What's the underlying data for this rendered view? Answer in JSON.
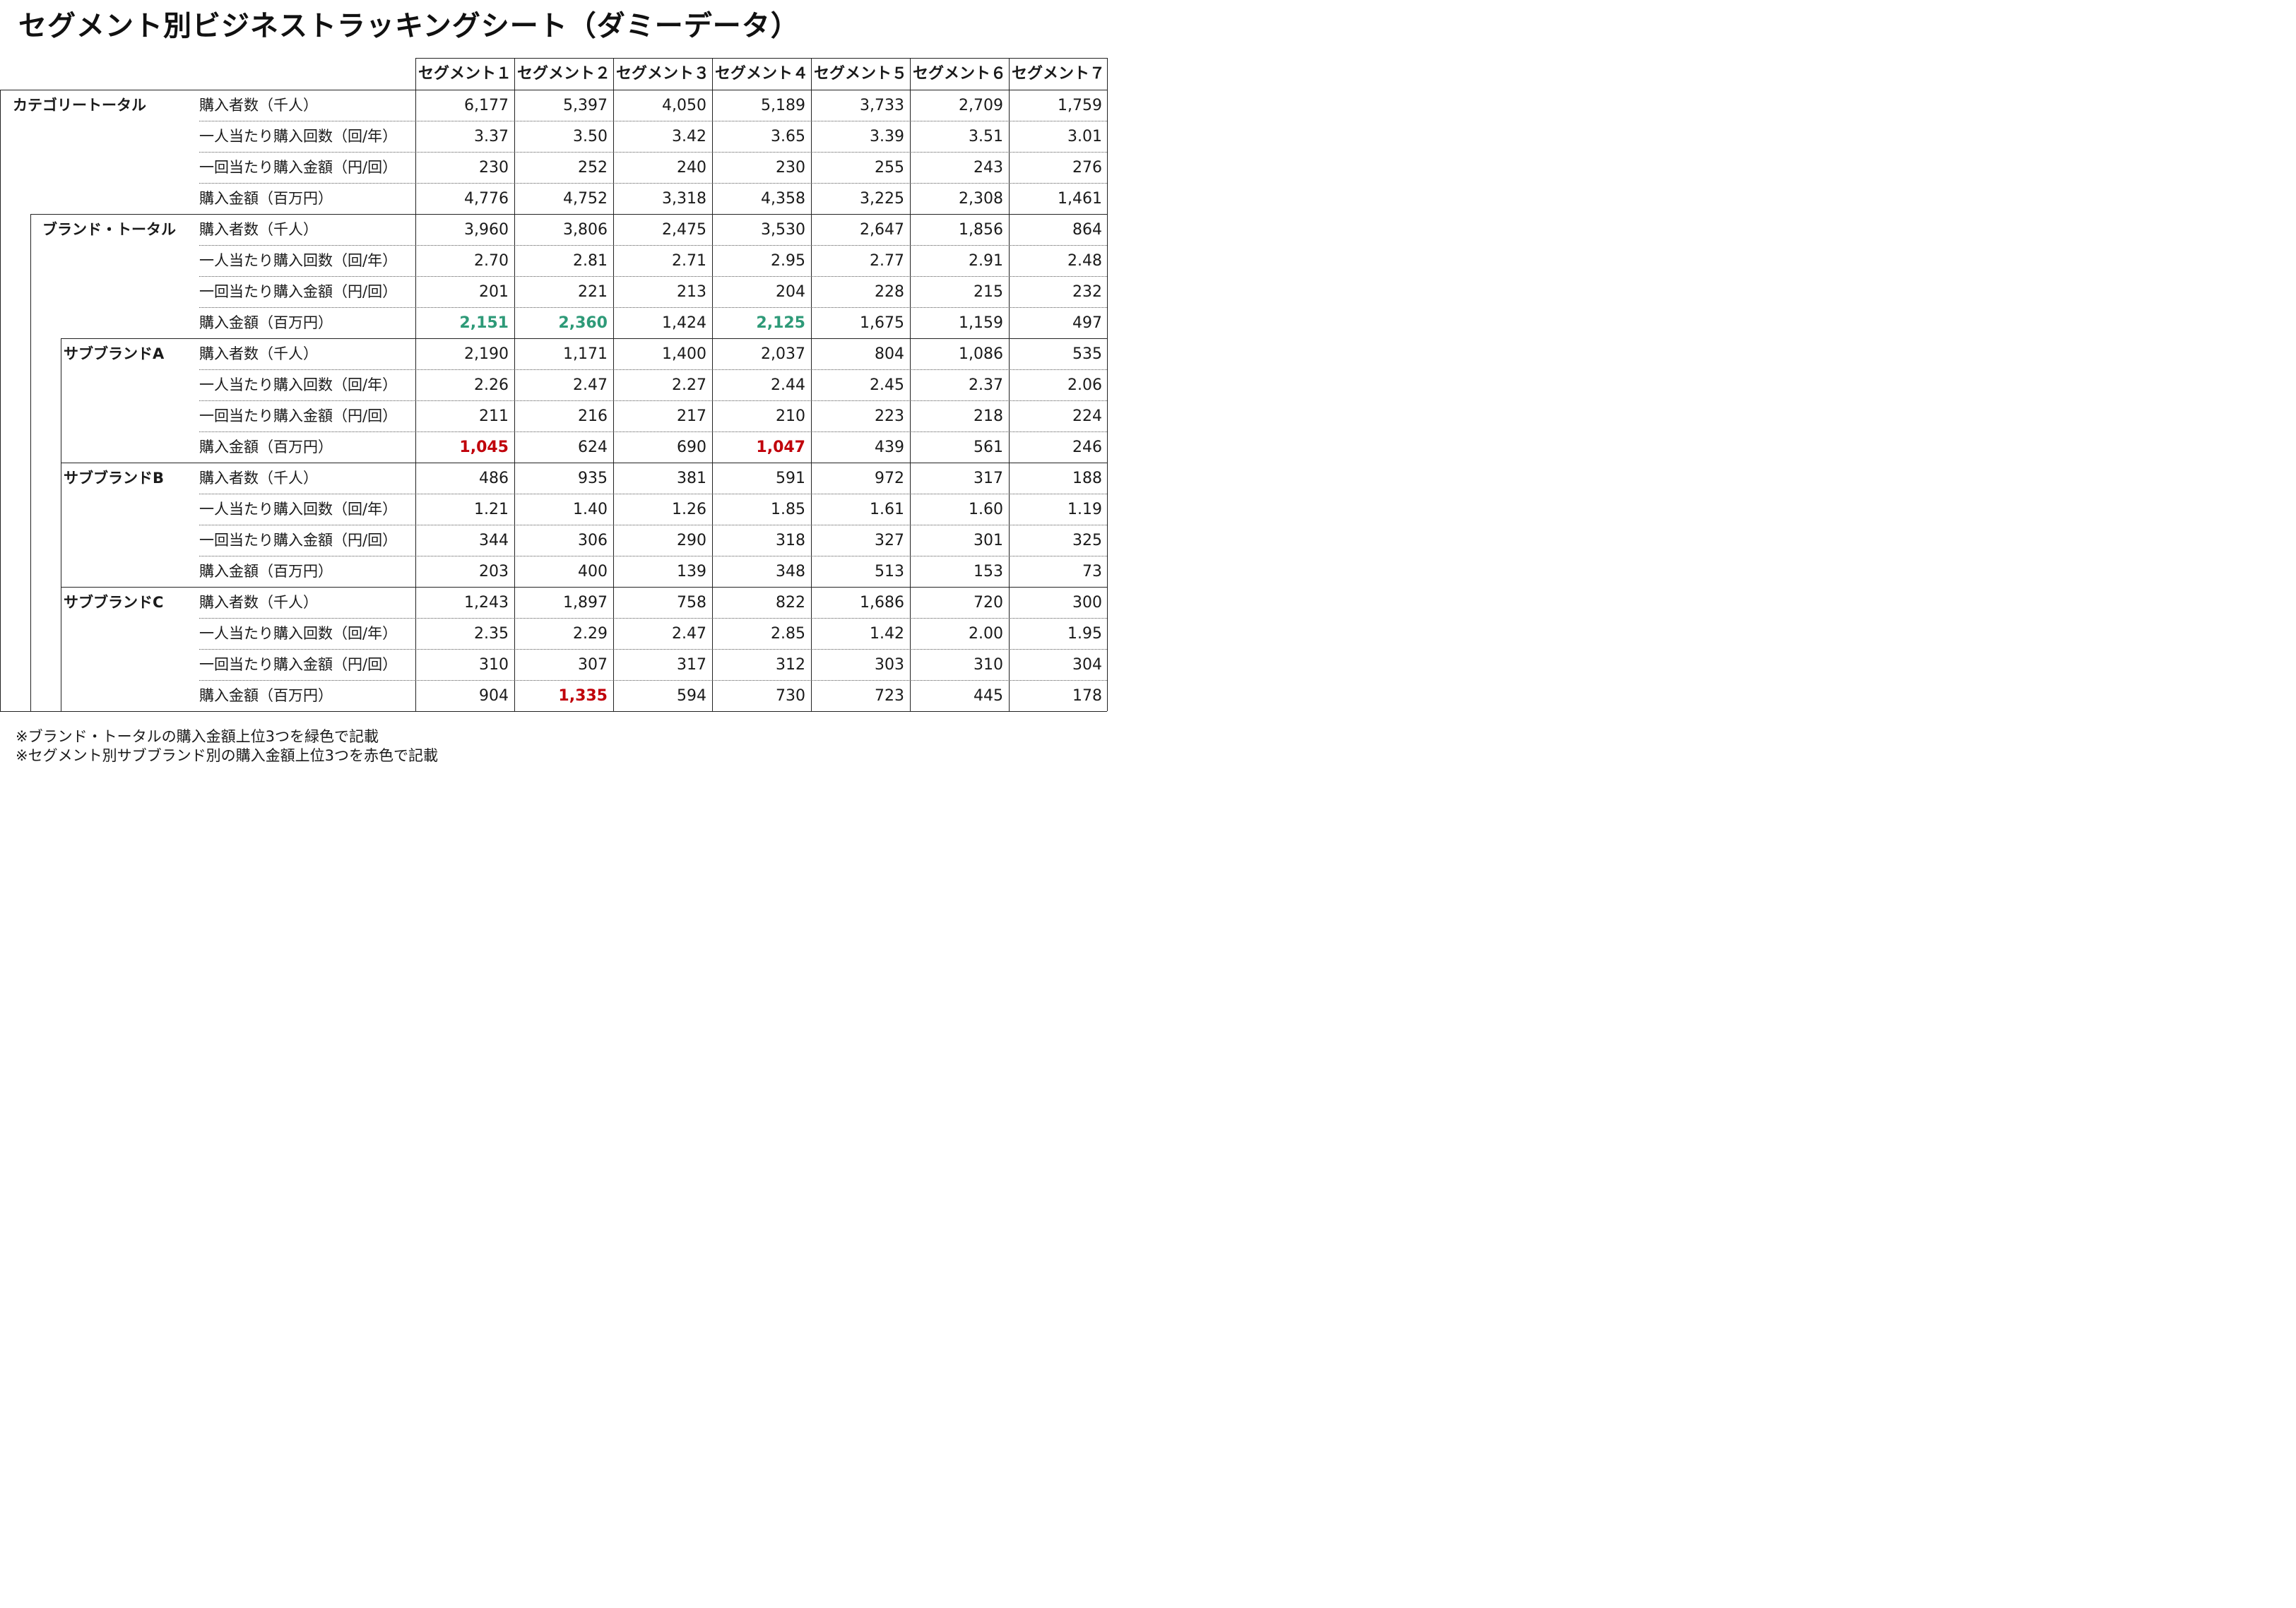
{
  "title": "セグメント別ビジネストラッキングシート（ダミーデータ）",
  "segments": [
    "セグメント１",
    "セグメント２",
    "セグメント３",
    "セグメント４",
    "セグメント５",
    "セグメント６",
    "セグメント７"
  ],
  "metrics": [
    "購入者数（千人）",
    "一人当たり購入回数（回/年）",
    "一回当たり購入金額（円/回）",
    "購入金額（百万円）"
  ],
  "groups": [
    {
      "label": "カテゴリートータル",
      "rows": [
        [
          "6,177",
          "5,397",
          "4,050",
          "5,189",
          "3,733",
          "2,709",
          "1,759"
        ],
        [
          "3.37",
          "3.50",
          "3.42",
          "3.65",
          "3.39",
          "3.51",
          "3.01"
        ],
        [
          "230",
          "252",
          "240",
          "230",
          "255",
          "243",
          "276"
        ],
        [
          "4,776",
          "4,752",
          "3,318",
          "4,358",
          "3,225",
          "2,308",
          "1,461"
        ]
      ],
      "highlight": []
    },
    {
      "label": "ブランド・トータル",
      "rows": [
        [
          "3,960",
          "3,806",
          "2,475",
          "3,530",
          "2,647",
          "1,856",
          "864"
        ],
        [
          "2.70",
          "2.81",
          "2.71",
          "2.95",
          "2.77",
          "2.91",
          "2.48"
        ],
        [
          "201",
          "221",
          "213",
          "204",
          "228",
          "215",
          "232"
        ],
        [
          "2,151",
          "2,360",
          "1,424",
          "2,125",
          "1,675",
          "1,159",
          "497"
        ]
      ],
      "highlight": [
        [
          3,
          0,
          "green"
        ],
        [
          3,
          1,
          "green"
        ],
        [
          3,
          3,
          "green"
        ]
      ]
    },
    {
      "label": "サブブランドA",
      "rows": [
        [
          "2,190",
          "1,171",
          "1,400",
          "2,037",
          "804",
          "1,086",
          "535"
        ],
        [
          "2.26",
          "2.47",
          "2.27",
          "2.44",
          "2.45",
          "2.37",
          "2.06"
        ],
        [
          "211",
          "216",
          "217",
          "210",
          "223",
          "218",
          "224"
        ],
        [
          "1,045",
          "624",
          "690",
          "1,047",
          "439",
          "561",
          "246"
        ]
      ],
      "highlight": [
        [
          3,
          0,
          "red"
        ],
        [
          3,
          3,
          "red"
        ]
      ]
    },
    {
      "label": "サブブランドB",
      "rows": [
        [
          "486",
          "935",
          "381",
          "591",
          "972",
          "317",
          "188"
        ],
        [
          "1.21",
          "1.40",
          "1.26",
          "1.85",
          "1.61",
          "1.60",
          "1.19"
        ],
        [
          "344",
          "306",
          "290",
          "318",
          "327",
          "301",
          "325"
        ],
        [
          "203",
          "400",
          "139",
          "348",
          "513",
          "153",
          "73"
        ]
      ],
      "highlight": []
    },
    {
      "label": "サブブランドC",
      "rows": [
        [
          "1,243",
          "1,897",
          "758",
          "822",
          "1,686",
          "720",
          "300"
        ],
        [
          "2.35",
          "2.29",
          "2.47",
          "2.85",
          "1.42",
          "2.00",
          "1.95"
        ],
        [
          "310",
          "307",
          "317",
          "312",
          "303",
          "310",
          "304"
        ],
        [
          "904",
          "1,335",
          "594",
          "730",
          "723",
          "445",
          "178"
        ]
      ],
      "highlight": [
        [
          3,
          1,
          "red"
        ]
      ]
    }
  ],
  "notes": [
    "※ブランド・トータルの購入金額上位3つを緑色で記載",
    "※セグメント別サブブランド別の購入金額上位3つを赤色で記載"
  ]
}
